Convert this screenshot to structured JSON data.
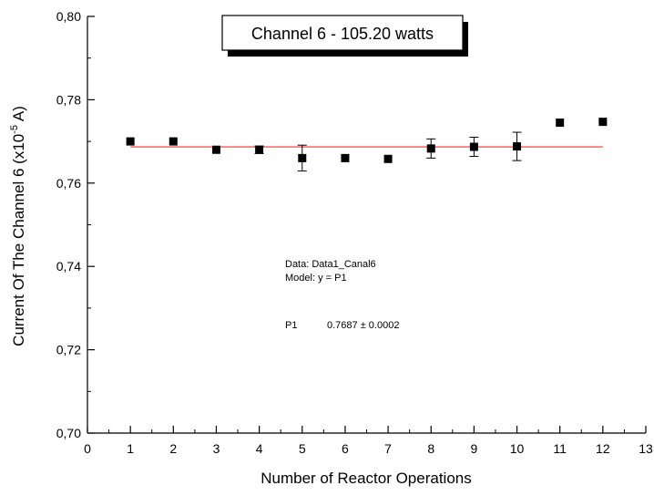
{
  "chart_data": {
    "type": "scatter",
    "title": "Channel 6 - 105.20 watts",
    "xlabel": "Number of Reactor Operations",
    "ylabel": {
      "prefix": "Current Of The Channel 6  (x10",
      "sup": "-5",
      "suffix": " A)"
    },
    "xlim": [
      0,
      13
    ],
    "ylim": [
      0.7,
      0.8
    ],
    "x_ticks": [
      "0",
      "1",
      "2",
      "3",
      "4",
      "5",
      "6",
      "7",
      "8",
      "9",
      "10",
      "11",
      "12",
      "13"
    ],
    "y_ticks": [
      "0,70",
      "0,72",
      "0,74",
      "0,76",
      "0,78",
      "0,80"
    ],
    "series": [
      {
        "x": [
          1,
          2,
          3,
          4,
          5,
          6,
          7,
          8,
          9,
          10,
          11,
          12
        ],
        "y": [
          0.77,
          0.77,
          0.768,
          0.768,
          0.766,
          0.766,
          0.7658,
          0.7683,
          0.7687,
          0.7688,
          0.7745,
          0.7747
        ],
        "error": [
          0.0001,
          0.0001,
          0.0001,
          0.0009,
          0.0031,
          0.0001,
          0.0001,
          0.0023,
          0.0023,
          0.0034,
          0.0001,
          0.0001
        ]
      }
    ],
    "fit": {
      "type": "constant",
      "value": 0.7687,
      "x_range": [
        1,
        12
      ],
      "color": "#ff2b2b"
    },
    "annotation": {
      "data_line": "Data: Data1_Canal6",
      "model_line": "Model: y = P1",
      "param_name": "P1",
      "param_value": "0.7687  ±  0.0002"
    },
    "grid": false,
    "marker_color": "#000000"
  }
}
